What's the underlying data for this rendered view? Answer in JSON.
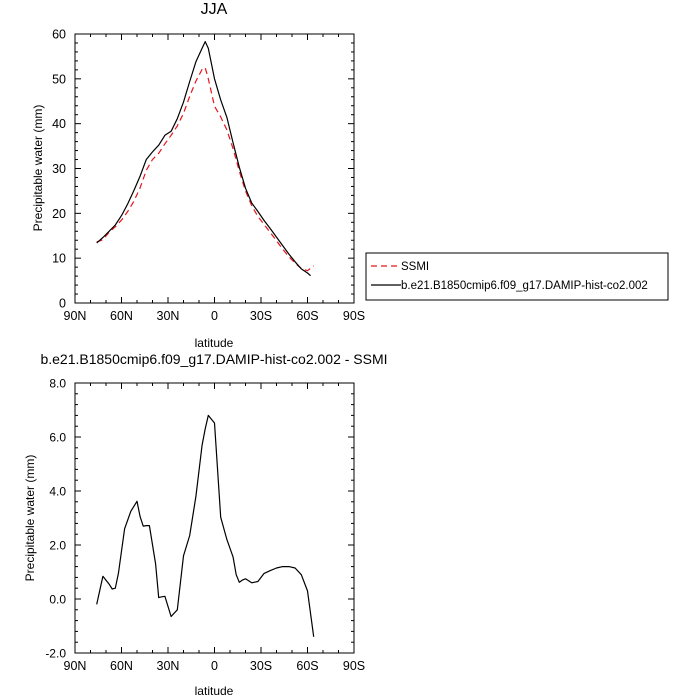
{
  "chart_data": [
    {
      "type": "line",
      "title": "JJA",
      "xlabel": "latitude",
      "ylabel": "Precipitable water (mm)",
      "xlim": [
        90,
        -90
      ],
      "ylim": [
        0,
        60
      ],
      "x_ticks": [
        90,
        60,
        30,
        0,
        -30,
        -60,
        -90
      ],
      "x_tick_labels": [
        "90N",
        "60N",
        "30N",
        "0",
        "30S",
        "60S",
        "90S"
      ],
      "y_ticks": [
        0,
        10,
        20,
        30,
        40,
        50,
        60
      ],
      "y_tick_labels": [
        "0",
        "10",
        "20",
        "30",
        "40",
        "50",
        "60"
      ],
      "grid": false,
      "legend": "right",
      "series": [
        {
          "name": "SSMI",
          "color": "#e8141a",
          "dash": "dashed",
          "x": [
            76,
            72,
            68,
            64,
            60,
            56,
            52,
            48,
            44,
            40,
            36,
            32,
            28,
            24,
            20,
            16,
            12,
            8,
            6,
            4,
            0,
            -4,
            -8,
            -12,
            -16,
            -20,
            -24,
            -28,
            -32,
            -36,
            -40,
            -44,
            -48,
            -52,
            -56,
            -60,
            -64
          ],
          "y": [
            13.6,
            14.1,
            15.8,
            17.0,
            18.5,
            20.4,
            22.7,
            25.7,
            29.6,
            32.0,
            33.4,
            35.5,
            37.4,
            39.5,
            42.3,
            46.1,
            49.5,
            52.1,
            52.5,
            50.0,
            43.9,
            41.5,
            38.6,
            34.4,
            29.4,
            25.0,
            21.7,
            19.3,
            17.5,
            15.7,
            13.9,
            12.0,
            10.3,
            8.9,
            7.7,
            7.2,
            8.3
          ]
        },
        {
          "name": "b.e21.B1850cmip6.f09_g17.DAMIP-hist-co2.002",
          "color": "#000000",
          "dash": "solid",
          "x": [
            76,
            72,
            68,
            64,
            60,
            56,
            52,
            48,
            44,
            40,
            36,
            32,
            28,
            24,
            20,
            16,
            12,
            8,
            6,
            4,
            0,
            -4,
            -8,
            -12,
            -16,
            -20,
            -24,
            -28,
            -32,
            -36,
            -40,
            -44,
            -48,
            -52,
            -56,
            -60,
            -62
          ],
          "y": [
            13.4,
            14.6,
            16.0,
            17.4,
            19.5,
            22.1,
            25.1,
            28.3,
            32.0,
            33.7,
            35.2,
            37.4,
            38.3,
            41.1,
            44.8,
            49.4,
            53.8,
            56.8,
            58.3,
            56.8,
            50.0,
            45.3,
            41.4,
            35.7,
            30.3,
            25.6,
            22.3,
            20.4,
            18.4,
            16.6,
            14.7,
            12.8,
            10.9,
            9.2,
            7.6,
            6.7,
            6.1
          ]
        }
      ]
    },
    {
      "type": "line",
      "title": "b.e21.B1850cmip6.f09_g17.DAMIP-hist-co2.002 - SSMI",
      "xlabel": "latitude",
      "ylabel": "Precipitable water (mm)",
      "xlim": [
        90,
        -90
      ],
      "ylim": [
        -2,
        8
      ],
      "x_ticks": [
        90,
        60,
        30,
        0,
        -30,
        -60,
        -90
      ],
      "x_tick_labels": [
        "90N",
        "60N",
        "30N",
        "0",
        "30S",
        "60S",
        "90S"
      ],
      "y_ticks": [
        -2,
        0,
        2,
        4,
        6,
        8
      ],
      "y_tick_labels": [
        "-2.0",
        "0.0",
        "2.0",
        "4.0",
        "6.0",
        "8.0"
      ],
      "grid": false,
      "series": [
        {
          "color": "#000000",
          "dash": "solid",
          "x": [
            76,
            72,
            68,
            66,
            64,
            62,
            58,
            54,
            50,
            48,
            46,
            44,
            42,
            38,
            36,
            34,
            32,
            28,
            24,
            20,
            16,
            12,
            8,
            6,
            4,
            0,
            -4,
            -8,
            -12,
            -14,
            -16,
            -18,
            -20,
            -24,
            -28,
            -32,
            -36,
            -40,
            -44,
            -48,
            -52,
            -56,
            -60,
            -64
          ],
          "y": [
            -0.2,
            0.84,
            0.55,
            0.37,
            0.4,
            0.95,
            2.6,
            3.25,
            3.62,
            3.05,
            2.7,
            2.72,
            2.72,
            1.3,
            0.05,
            0.08,
            0.1,
            -0.65,
            -0.4,
            1.6,
            2.35,
            3.8,
            5.7,
            6.3,
            6.8,
            6.52,
            3.03,
            2.2,
            1.55,
            0.9,
            0.62,
            0.7,
            0.75,
            0.6,
            0.65,
            0.95,
            1.05,
            1.15,
            1.2,
            1.2,
            1.15,
            0.9,
            0.3,
            -1.4
          ]
        }
      ]
    }
  ]
}
